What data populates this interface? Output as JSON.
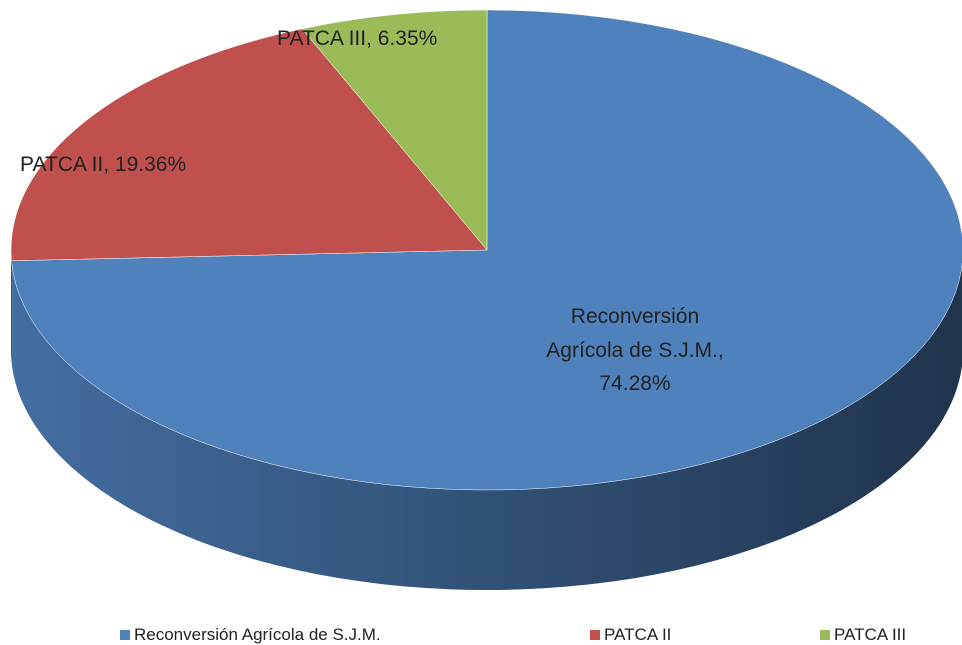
{
  "chart_data": {
    "type": "pie",
    "categories": [
      "Reconversión Agrícola de S.J.M.",
      "PATCA II",
      "PATCA III"
    ],
    "values": [
      74.28,
      19.36,
      6.35
    ],
    "value_labels": [
      "74.28%",
      "19.36%",
      "6.35%"
    ],
    "colors": [
      "#4f81bd",
      "#c0504d",
      "#9bbb59"
    ],
    "legend": "bottom"
  }
}
